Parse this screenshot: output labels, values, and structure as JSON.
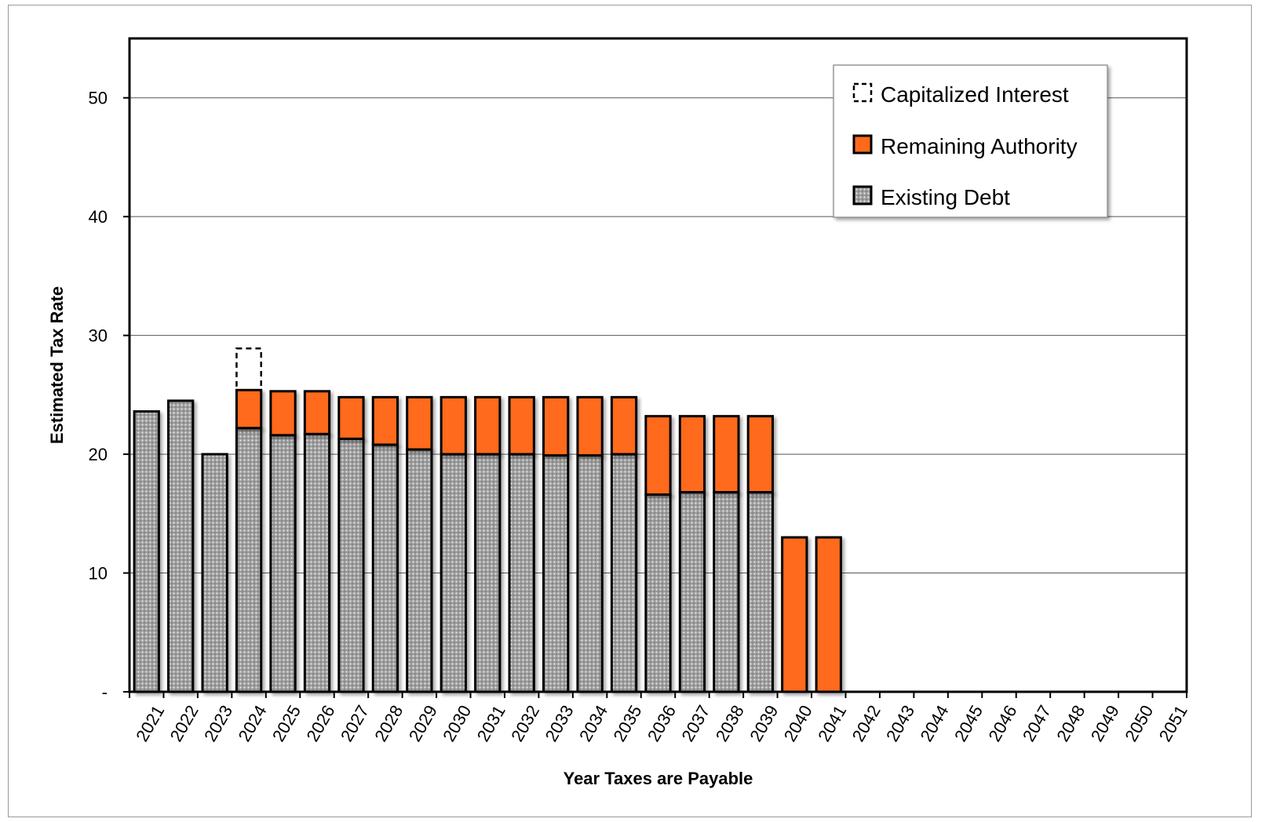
{
  "chart_data": {
    "type": "bar",
    "stacked": true,
    "xlabel": "Year Taxes are Payable",
    "ylabel": "Estimated Tax Rate",
    "ylim": [
      0,
      55
    ],
    "yticks": [
      {
        "value": 0,
        "label": "-"
      },
      {
        "value": 10,
        "label": "10"
      },
      {
        "value": 20,
        "label": "20"
      },
      {
        "value": 30,
        "label": "30"
      },
      {
        "value": 40,
        "label": "40"
      },
      {
        "value": 50,
        "label": "50"
      }
    ],
    "grid": true,
    "legend_position": "top-right",
    "categories": [
      "2021",
      "2022",
      "2023",
      "2024",
      "2025",
      "2026",
      "2027",
      "2028",
      "2029",
      "2030",
      "2031",
      "2032",
      "2033",
      "2034",
      "2035",
      "2036",
      "2037",
      "2038",
      "2039",
      "2040",
      "2041",
      "2042",
      "2043",
      "2044",
      "2045",
      "2046",
      "2047",
      "2048",
      "2049",
      "2050",
      "2051"
    ],
    "series": [
      {
        "name": "Existing Debt",
        "color": "#a6a6a6",
        "pattern": "dotted",
        "values": [
          23.6,
          24.5,
          20.0,
          22.2,
          21.6,
          21.7,
          21.3,
          20.8,
          20.4,
          20.0,
          20.0,
          20.0,
          19.9,
          19.9,
          20.0,
          16.6,
          16.8,
          16.8,
          16.8,
          0,
          0,
          0,
          0,
          0,
          0,
          0,
          0,
          0,
          0,
          0,
          0
        ]
      },
      {
        "name": "Remaining Authority",
        "color": "#ff6a1a",
        "values": [
          0,
          0,
          0,
          3.2,
          3.7,
          3.6,
          3.5,
          4.0,
          4.4,
          4.8,
          4.8,
          4.8,
          4.9,
          4.9,
          4.8,
          6.6,
          6.4,
          6.4,
          6.4,
          13.0,
          13.0,
          0,
          0,
          0,
          0,
          0,
          0,
          0,
          0,
          0,
          0
        ]
      },
      {
        "name": "Capitalized Interest",
        "color": "#ffffff",
        "style": "dashed-outline",
        "values": [
          0,
          0,
          0,
          3.5,
          0,
          0,
          0,
          0,
          0,
          0,
          0,
          0,
          0,
          0,
          0,
          0,
          0,
          0,
          0,
          0,
          0,
          0,
          0,
          0,
          0,
          0,
          0,
          0,
          0,
          0,
          0
        ]
      }
    ],
    "legend_order": [
      "Capitalized Interest",
      "Remaining Authority",
      "Existing Debt"
    ]
  }
}
